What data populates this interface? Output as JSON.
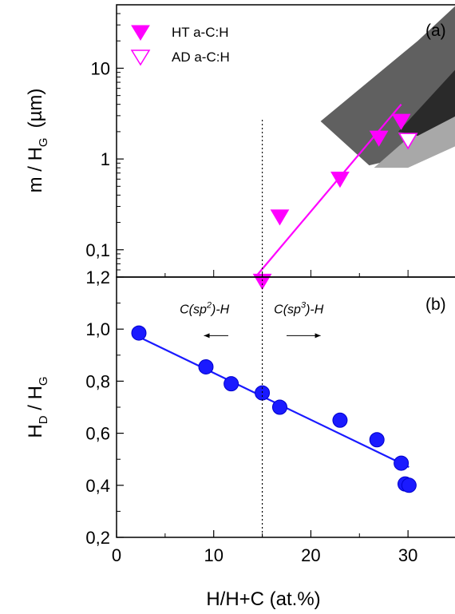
{
  "chart_data": [
    {
      "panel": "(a)",
      "type": "scatter",
      "scale": "log",
      "ylabel_main": "m / H",
      "ylabel_sub": "G",
      "ylabel_unit": "(µm)",
      "xlim": [
        0,
        35
      ],
      "ylim": [
        0.05,
        50
      ],
      "yticks": [
        {
          "value": 0.1,
          "label": "0,1"
        },
        {
          "value": 1,
          "label": "1"
        },
        {
          "value": 10,
          "label": "10"
        }
      ],
      "series": [
        {
          "name": "HT a-C:H",
          "marker": "filled-down-triangle",
          "color": "#ff00ff",
          "points": [
            {
              "x": 15.0,
              "y": 0.045
            },
            {
              "x": 16.8,
              "y": 0.23
            },
            {
              "x": 23.0,
              "y": 0.6
            },
            {
              "x": 27.0,
              "y": 1.7
            },
            {
              "x": 29.3,
              "y": 2.6
            }
          ]
        },
        {
          "name": "AD a-C:H",
          "marker": "open-down-triangle",
          "color": "#ff00ff",
          "points": [
            {
              "x": 30.0,
              "y": 1.6
            }
          ]
        }
      ],
      "fit_line": {
        "color": "#ff00ff",
        "points": [
          {
            "x": 14.3,
            "y": 0.05
          },
          {
            "x": 29.3,
            "y": 4.0
          }
        ]
      },
      "shaded_regions": [
        {
          "color": "#606060",
          "points": [
            [
              21,
              2.6
            ],
            [
              31,
              20
            ],
            [
              35,
              50
            ],
            [
              35,
              2.6
            ],
            [
              32,
              1.2
            ],
            [
              26,
              0.85
            ]
          ]
        },
        {
          "color": "#a8a8a8",
          "points": [
            [
              26.5,
              0.8
            ],
            [
              35,
              5
            ],
            [
              35,
              1.4
            ],
            [
              30,
              0.8
            ]
          ]
        },
        {
          "color": "#2a2a2a",
          "points": [
            [
              29,
              2.0
            ],
            [
              35,
              10
            ],
            [
              35,
              3.0
            ],
            [
              31,
              1.8
            ]
          ]
        }
      ]
    },
    {
      "panel": "(b)",
      "type": "scatter",
      "ylabel_main": "H",
      "ylabel_sub1": "D",
      "ylabel_mid": " / H",
      "ylabel_sub2": "G",
      "xlabel": "H/H+C (at.%)",
      "xlim": [
        0,
        35
      ],
      "ylim": [
        0.2,
        1.2
      ],
      "xticks": [
        {
          "value": 0,
          "label": "0"
        },
        {
          "value": 10,
          "label": "10"
        },
        {
          "value": 20,
          "label": "20"
        },
        {
          "value": 30,
          "label": "30"
        }
      ],
      "yticks": [
        {
          "value": 0.2,
          "label": "0,2"
        },
        {
          "value": 0.4,
          "label": "0,4"
        },
        {
          "value": 0.6,
          "label": "0,6"
        },
        {
          "value": 0.8,
          "label": "0,8"
        },
        {
          "value": 1.0,
          "label": "1,0"
        },
        {
          "value": 1.2,
          "label": "1,2"
        }
      ],
      "series": [
        {
          "marker": "filled-circle",
          "color": "#1a1aff",
          "points": [
            {
              "x": 2.3,
              "y": 0.985
            },
            {
              "x": 9.2,
              "y": 0.855
            },
            {
              "x": 11.8,
              "y": 0.79
            },
            {
              "x": 15.0,
              "y": 0.755
            },
            {
              "x": 16.8,
              "y": 0.7
            },
            {
              "x": 23.0,
              "y": 0.65
            },
            {
              "x": 26.8,
              "y": 0.575
            },
            {
              "x": 29.3,
              "y": 0.485
            },
            {
              "x": 29.7,
              "y": 0.405
            },
            {
              "x": 30.1,
              "y": 0.4
            }
          ]
        }
      ],
      "fit_line": {
        "color": "#1a1aff",
        "points": [
          {
            "x": 2.3,
            "y": 0.97
          },
          {
            "x": 30.1,
            "y": 0.47
          }
        ]
      },
      "annotations": [
        {
          "text": "C(sp",
          "sup": "2",
          "tail": ")-H",
          "x": 6.5,
          "y": 1.06,
          "arrow_from": 11.5,
          "arrow_to": 9.0,
          "arrow_y": 0.975
        },
        {
          "text": "C(sp",
          "sup": "3",
          "tail": ")-H",
          "x": 16.2,
          "y": 1.06,
          "arrow_from": 17.5,
          "arrow_to": 21.0,
          "arrow_y": 0.975
        }
      ]
    }
  ],
  "legend": {
    "position": "top-left",
    "items": [
      {
        "label": "HT a-C:H",
        "marker": "filled-down-triangle",
        "color": "#ff00ff"
      },
      {
        "label": "AD a-C:H",
        "marker": "open-down-triangle",
        "color": "#ff00ff"
      }
    ]
  },
  "reference_line": {
    "x": 15.0,
    "style": "dotted"
  },
  "grid": false
}
